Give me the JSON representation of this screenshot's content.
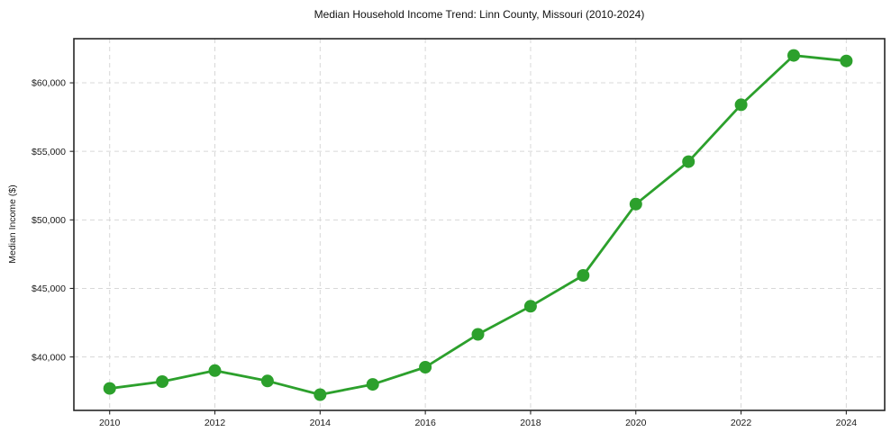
{
  "figure": {
    "title": "Median Household Income Trend: Linn County, Missouri (2010-2024)"
  },
  "chart_data": {
    "type": "line",
    "title": "Median Household Income Trend: Linn County, Missouri (2010-2024)",
    "xlabel": "",
    "ylabel": "Median Income ($)",
    "series_name": "Median Household Income",
    "x": [
      2010,
      2011,
      2012,
      2013,
      2014,
      2015,
      2016,
      2017,
      2018,
      2019,
      2020,
      2021,
      2022,
      2023,
      2024
    ],
    "values": [
      37700,
      38200,
      39000,
      38250,
      37250,
      38000,
      39250,
      41650,
      43700,
      45950,
      51150,
      54250,
      58400,
      62000,
      61600
    ],
    "xticks": [
      2010,
      2012,
      2014,
      2016,
      2018,
      2020,
      2022,
      2024
    ],
    "xtick_labels": [
      "2010",
      "2012",
      "2014",
      "2016",
      "2018",
      "2020",
      "2022",
      "2024"
    ],
    "yticks": [
      40000,
      45000,
      50000,
      55000,
      60000
    ],
    "ytick_labels": [
      "$40,000",
      "$45,000",
      "$50,000",
      "$55,000",
      "$60,000"
    ],
    "xlim": [
      2009.32,
      2024.73
    ],
    "ylim": [
      36100,
      63220
    ],
    "grid": true,
    "grid_style": "dashed",
    "legend": false,
    "line_color": "#2ca02c",
    "marker": "circle",
    "marker_radius": 7,
    "line_width": 2.8,
    "grid_color": "#d8d8d8",
    "axis_color": "#262626"
  }
}
